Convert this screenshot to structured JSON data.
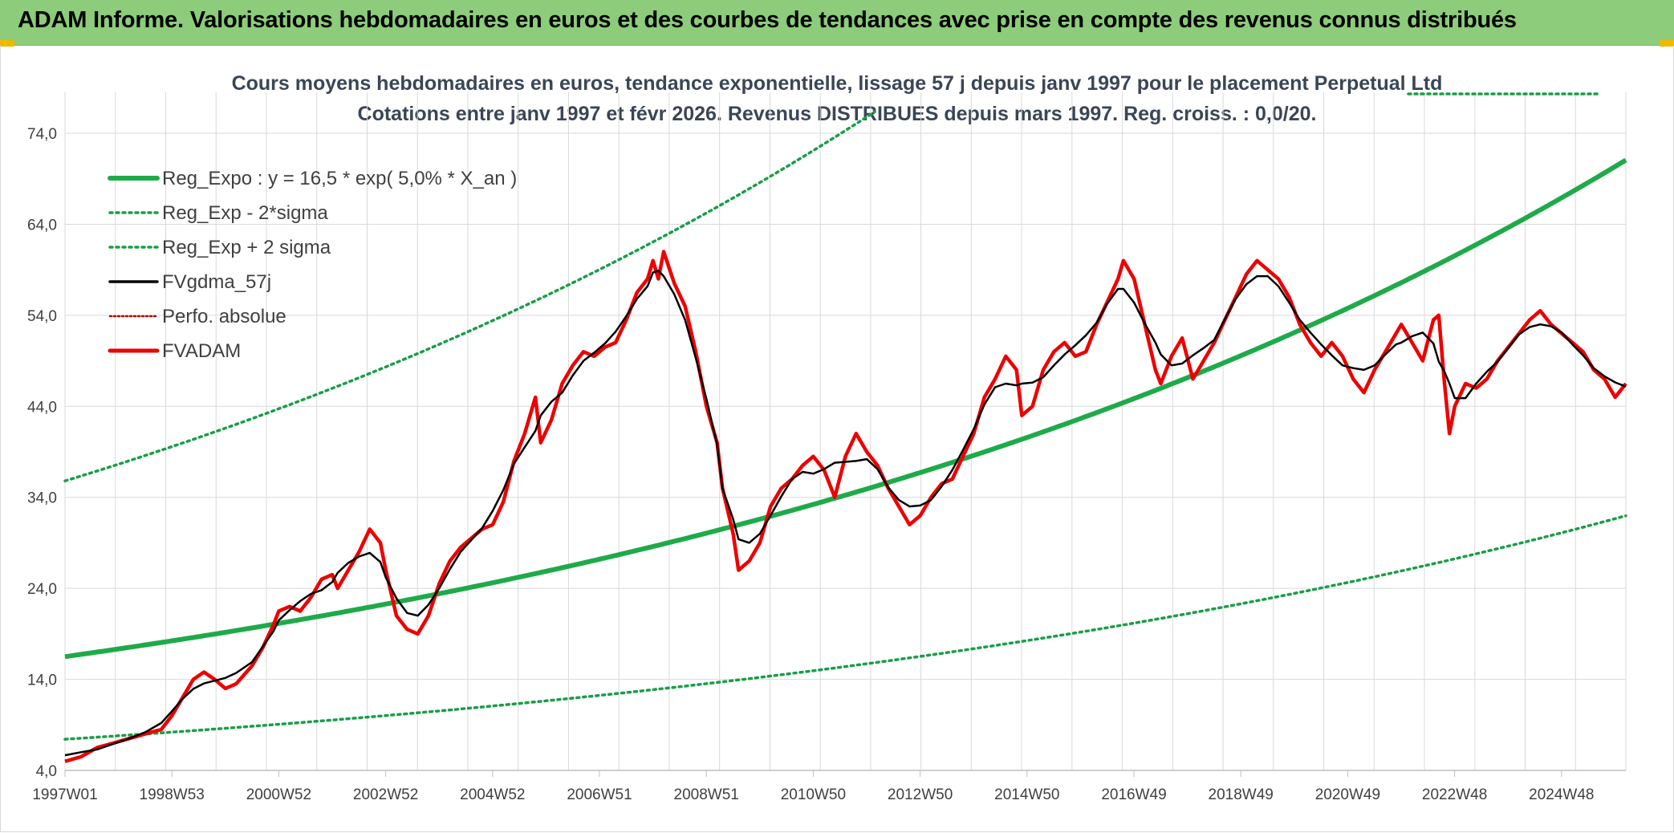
{
  "banner": {
    "title": "ADAM Informe. Valorisations hebdomadaires en euros et des courbes de tendances avec prise en compte des revenus connus distribués"
  },
  "chart_data": {
    "type": "line",
    "subtitle_line1": "Cours moyens hebdomadaires en euros, tendance exponentielle, lissage 57 j depuis janv 1997 pour le placement Perpetual Ltd",
    "subtitle_line2": "Cotations entre janv 1997 et févr 2026. Revenus DISTRIBUES depuis mars 1997. Reg. croiss. : 0,0/20.",
    "x_ticks": [
      "1997W01",
      "1998W53",
      "2000W52",
      "2002W52",
      "2004W52",
      "2006W51",
      "2008W51",
      "2010W50",
      "2012W50",
      "2014W50",
      "2016W49",
      "2018W49",
      "2020W49",
      "2022W48",
      "2024W48"
    ],
    "y_ticks": [
      "4,0",
      "14,0",
      "24,0",
      "34,0",
      "44,0",
      "54,0",
      "64,0",
      "74,0"
    ],
    "ylim": [
      4,
      78
    ],
    "xlim": [
      1997.0,
      2026.2
    ],
    "grid": true,
    "legend_position": "top-left",
    "colors": {
      "trend": "#1faa4a",
      "sigma": "#1a9e48",
      "smooth": "#000000",
      "perfo": "#c00000",
      "price": "#ee0000",
      "grid": "#d9d9d9"
    },
    "regression": {
      "a": 16.5,
      "rate": 0.05,
      "sigma_factor_minus": 0.45,
      "sigma_factor_plus": 2.17
    },
    "series": [
      {
        "name": "Reg_Expo : y = 16,5 * exp( 5,0% *  X_an )",
        "style": "trend"
      },
      {
        "name": "Reg_Exp - 2*sigma",
        "style": "sigma_minus"
      },
      {
        "name": "Reg_Exp + 2 sigma",
        "style": "sigma_plus"
      },
      {
        "name": "FVgdma_57j",
        "style": "smooth"
      },
      {
        "name": "Perfo. absolue",
        "style": "perfo"
      },
      {
        "name": "FVADAM",
        "style": "price",
        "points": [
          [
            1997.0,
            5.0
          ],
          [
            1997.3,
            5.5
          ],
          [
            1997.6,
            6.5
          ],
          [
            1997.9,
            7.0
          ],
          [
            1998.2,
            7.5
          ],
          [
            1998.5,
            8.0
          ],
          [
            1998.8,
            8.5
          ],
          [
            1999.0,
            10.0
          ],
          [
            1999.2,
            12.0
          ],
          [
            1999.4,
            14.0
          ],
          [
            1999.6,
            14.8
          ],
          [
            1999.8,
            14.0
          ],
          [
            2000.0,
            13.0
          ],
          [
            2000.2,
            13.5
          ],
          [
            2000.5,
            15.5
          ],
          [
            2000.7,
            17.5
          ],
          [
            2000.9,
            20.0
          ],
          [
            2001.0,
            21.5
          ],
          [
            2001.2,
            22.0
          ],
          [
            2001.4,
            21.5
          ],
          [
            2001.6,
            23.0
          ],
          [
            2001.8,
            25.0
          ],
          [
            2002.0,
            25.5
          ],
          [
            2002.1,
            24.0
          ],
          [
            2002.3,
            26.0
          ],
          [
            2002.5,
            28.0
          ],
          [
            2002.7,
            30.5
          ],
          [
            2002.9,
            29.0
          ],
          [
            2003.0,
            26.0
          ],
          [
            2003.2,
            21.0
          ],
          [
            2003.4,
            19.5
          ],
          [
            2003.6,
            19.0
          ],
          [
            2003.8,
            21.0
          ],
          [
            2004.0,
            24.5
          ],
          [
            2004.2,
            27.0
          ],
          [
            2004.4,
            28.5
          ],
          [
            2004.6,
            29.5
          ],
          [
            2004.8,
            30.5
          ],
          [
            2005.0,
            31.0
          ],
          [
            2005.2,
            33.5
          ],
          [
            2005.4,
            38.0
          ],
          [
            2005.6,
            41.0
          ],
          [
            2005.8,
            45.0
          ],
          [
            2005.9,
            40.0
          ],
          [
            2006.1,
            42.5
          ],
          [
            2006.3,
            46.5
          ],
          [
            2006.5,
            48.5
          ],
          [
            2006.7,
            50.0
          ],
          [
            2006.9,
            49.5
          ],
          [
            2007.1,
            50.5
          ],
          [
            2007.3,
            51.0
          ],
          [
            2007.5,
            53.5
          ],
          [
            2007.7,
            56.5
          ],
          [
            2007.9,
            58.0
          ],
          [
            2008.0,
            60.0
          ],
          [
            2008.1,
            58.0
          ],
          [
            2008.2,
            61.0
          ],
          [
            2008.4,
            57.5
          ],
          [
            2008.6,
            55.0
          ],
          [
            2008.8,
            50.0
          ],
          [
            2009.0,
            44.0
          ],
          [
            2009.2,
            40.0
          ],
          [
            2009.3,
            35.0
          ],
          [
            2009.5,
            30.0
          ],
          [
            2009.6,
            26.0
          ],
          [
            2009.8,
            27.0
          ],
          [
            2010.0,
            29.0
          ],
          [
            2010.2,
            33.0
          ],
          [
            2010.4,
            35.0
          ],
          [
            2010.6,
            36.0
          ],
          [
            2010.8,
            37.5
          ],
          [
            2011.0,
            38.5
          ],
          [
            2011.2,
            37.0
          ],
          [
            2011.4,
            34.0
          ],
          [
            2011.6,
            38.5
          ],
          [
            2011.8,
            41.0
          ],
          [
            2012.0,
            39.0
          ],
          [
            2012.2,
            37.5
          ],
          [
            2012.4,
            35.0
          ],
          [
            2012.6,
            33.0
          ],
          [
            2012.8,
            31.0
          ],
          [
            2013.0,
            32.0
          ],
          [
            2013.2,
            34.0
          ],
          [
            2013.4,
            35.5
          ],
          [
            2013.6,
            36.0
          ],
          [
            2013.8,
            38.5
          ],
          [
            2014.0,
            41.0
          ],
          [
            2014.2,
            45.0
          ],
          [
            2014.4,
            47.0
          ],
          [
            2014.6,
            49.5
          ],
          [
            2014.8,
            48.0
          ],
          [
            2014.9,
            43.0
          ],
          [
            2015.1,
            44.0
          ],
          [
            2015.3,
            48.0
          ],
          [
            2015.5,
            50.0
          ],
          [
            2015.7,
            51.0
          ],
          [
            2015.9,
            49.5
          ],
          [
            2016.1,
            50.0
          ],
          [
            2016.3,
            53.0
          ],
          [
            2016.5,
            55.5
          ],
          [
            2016.7,
            58.0
          ],
          [
            2016.8,
            60.0
          ],
          [
            2017.0,
            58.0
          ],
          [
            2017.2,
            53.0
          ],
          [
            2017.4,
            48.0
          ],
          [
            2017.5,
            46.5
          ],
          [
            2017.7,
            49.5
          ],
          [
            2017.9,
            51.5
          ],
          [
            2018.1,
            47.0
          ],
          [
            2018.3,
            49.0
          ],
          [
            2018.5,
            51.0
          ],
          [
            2018.7,
            53.5
          ],
          [
            2018.9,
            56.0
          ],
          [
            2019.1,
            58.5
          ],
          [
            2019.3,
            60.0
          ],
          [
            2019.5,
            59.0
          ],
          [
            2019.7,
            58.0
          ],
          [
            2019.9,
            56.0
          ],
          [
            2020.1,
            53.0
          ],
          [
            2020.3,
            51.0
          ],
          [
            2020.5,
            49.5
          ],
          [
            2020.7,
            51.0
          ],
          [
            2020.9,
            49.5
          ],
          [
            2021.1,
            47.0
          ],
          [
            2021.3,
            45.5
          ],
          [
            2021.5,
            48.0
          ],
          [
            2021.7,
            50.0
          ],
          [
            2021.9,
            52.0
          ],
          [
            2022.0,
            53.0
          ],
          [
            2022.2,
            51.0
          ],
          [
            2022.4,
            49.0
          ],
          [
            2022.6,
            53.5
          ],
          [
            2022.7,
            54.0
          ],
          [
            2022.8,
            47.0
          ],
          [
            2022.9,
            41.0
          ],
          [
            2023.0,
            44.0
          ],
          [
            2023.2,
            46.5
          ],
          [
            2023.4,
            46.0
          ],
          [
            2023.6,
            47.0
          ],
          [
            2023.8,
            49.0
          ],
          [
            2024.0,
            50.5
          ],
          [
            2024.2,
            52.0
          ],
          [
            2024.4,
            53.5
          ],
          [
            2024.6,
            54.5
          ],
          [
            2024.8,
            53.0
          ],
          [
            2025.0,
            52.0
          ],
          [
            2025.2,
            51.0
          ],
          [
            2025.4,
            50.0
          ],
          [
            2025.6,
            48.0
          ],
          [
            2025.8,
            47.0
          ],
          [
            2026.0,
            45.0
          ],
          [
            2026.2,
            46.5
          ]
        ]
      }
    ]
  }
}
